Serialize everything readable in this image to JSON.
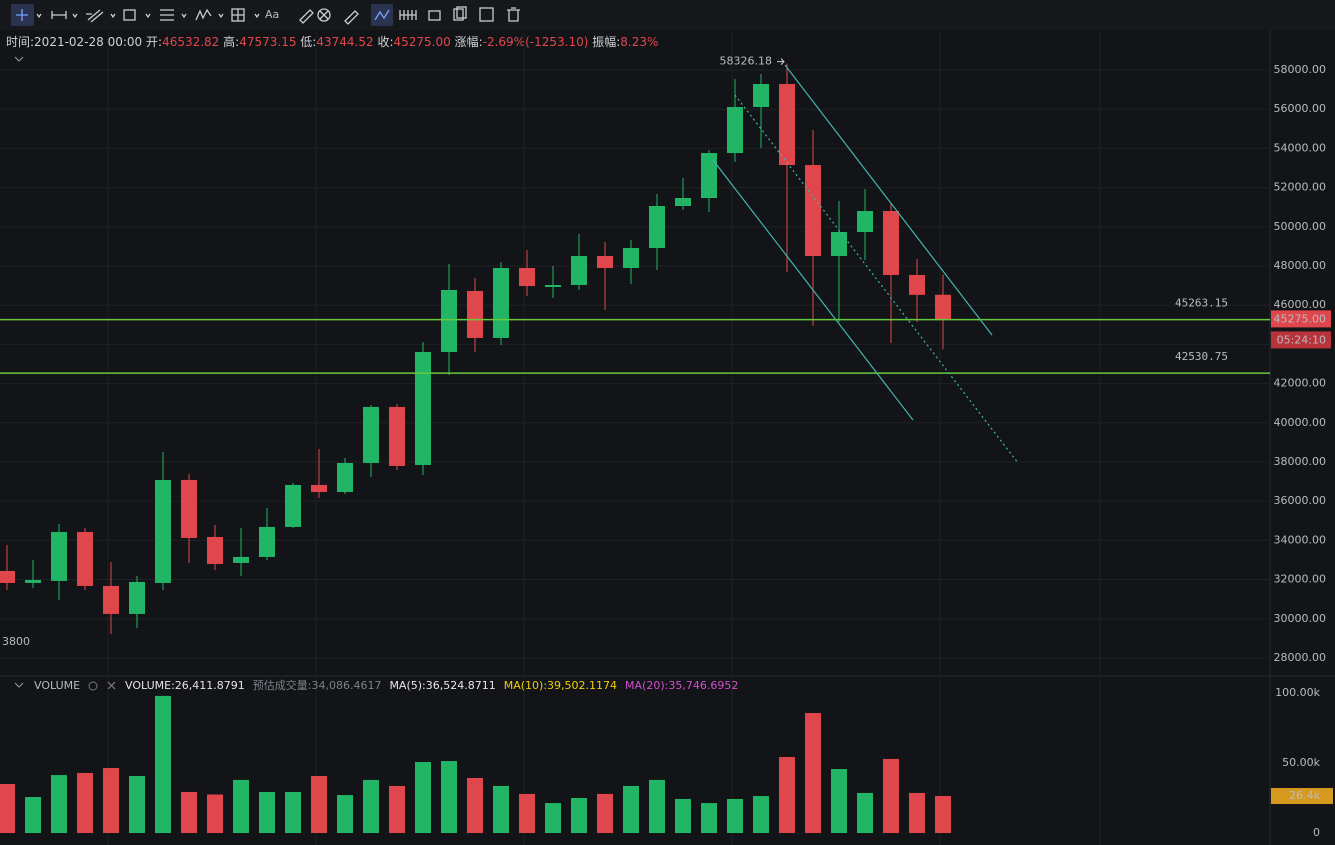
{
  "toolbar": {
    "text_tool": "Aa"
  },
  "header": {
    "time_label": "时间:",
    "time": "2021-02-28 00:00",
    "open_label": "开:",
    "open": "46532.82",
    "high_label": "高:",
    "high": "47573.15",
    "low_label": "低:",
    "low": "43744.52",
    "close_label": "收:",
    "close": "45275.00",
    "change_label": "涨幅:",
    "change": "-2.69%(-1253.10)",
    "amplitude_label": "振幅:",
    "amplitude": "8.23%"
  },
  "chart_data": [
    {
      "type": "candlestick",
      "open": [
        32439,
        31827,
        31929,
        34429,
        31673,
        30245,
        31827,
        37082,
        34173,
        32847,
        33153,
        34684,
        36827,
        36469,
        37949,
        40806,
        37847,
        43612,
        46724,
        44327,
        47898,
        46929,
        47031,
        48510,
        47898,
        48918,
        51061,
        51469,
        53765,
        56112,
        57286,
        53153,
        48510,
        49735,
        50806,
        47541,
        46532.82
      ],
      "high": [
        33765,
        33000,
        34837,
        34633,
        32898,
        32184,
        38510,
        37388,
        34786,
        34633,
        35653,
        36929,
        38663,
        38204,
        40908,
        40959,
        44122,
        48102,
        47388,
        48204,
        48816,
        48000,
        49633,
        49224,
        49327,
        51673,
        52490,
        53918,
        57541,
        57796,
        58326.18,
        54939,
        51316,
        51929,
        51163,
        48357,
        47573.15
      ],
      "low": [
        31469,
        31571,
        30959,
        31469,
        29224,
        29531,
        31469,
        32847,
        32490,
        32184,
        33000,
        34633,
        36163,
        36367,
        37235,
        37592,
        37337,
        42439,
        43612,
        43969,
        46469,
        46367,
        46776,
        45755,
        47082,
        47796,
        50857,
        50755,
        53306,
        54020,
        47694,
        44939,
        45143,
        48306,
        44071,
        45143,
        43744.52
      ],
      "close": [
        31827,
        31980,
        34429,
        31673,
        30245,
        31878,
        37082,
        34122,
        32796,
        33153,
        34684,
        36827,
        36469,
        37949,
        40806,
        37796,
        43612,
        46776,
        44327,
        47898,
        46980,
        47031,
        48510,
        47898,
        48918,
        51061,
        51469,
        53765,
        56112,
        57286,
        53153,
        48510,
        49735,
        50806,
        47541,
        46528.1,
        45275
      ],
      "up_color": "#22b566",
      "down_color": "#e0474c",
      "ylim": [
        27130,
        59940
      ],
      "yticks": [
        {
          "value": 28000,
          "label": "28000.00"
        },
        {
          "value": 30000,
          "label": "30000.00"
        },
        {
          "value": 32000,
          "label": "32000.00"
        },
        {
          "value": 34000,
          "label": "34000.00"
        },
        {
          "value": 36000,
          "label": "36000.00"
        },
        {
          "value": 38000,
          "label": "38000.00"
        },
        {
          "value": 40000,
          "label": "40000.00"
        },
        {
          "value": 42000,
          "label": "42000.00"
        },
        {
          "value": 44000,
          "label": "44000.00"
        },
        {
          "value": 46000,
          "label": "46000.00"
        },
        {
          "value": 48000,
          "label": "48000.00"
        },
        {
          "value": 50000,
          "label": "50000.00"
        },
        {
          "value": 52000,
          "label": "52000.00"
        },
        {
          "value": 54000,
          "label": "54000.00"
        },
        {
          "value": 56000,
          "label": "56000.00"
        },
        {
          "value": 58000,
          "label": "58000.00"
        }
      ],
      "grid": true,
      "hlines": [
        45263.15,
        42530.75
      ],
      "hline_color": "#67c93b",
      "last_price": {
        "value": 45275,
        "label": "45275.00"
      },
      "countdown": "05:24:10",
      "clipped_label": "3800"
    },
    {
      "type": "bar",
      "title": "VOLUME",
      "current": "VOLUME:26,411.8791",
      "estimate": "预估成交量:34,086.4617",
      "ma": [
        {
          "name": "MA(5):36,524.8711",
          "color": "#e6e6e6"
        },
        {
          "name": "MA(10):39,502.1174",
          "color": "#f0d000"
        },
        {
          "name": "MA(20):35,746.6952",
          "color": "#d54fd0"
        }
      ],
      "values": [
        35000,
        25700,
        41400,
        42900,
        46400,
        40700,
        97900,
        29300,
        27500,
        37900,
        29300,
        29300,
        40700,
        27100,
        37900,
        33600,
        50700,
        51400,
        39300,
        33600,
        27900,
        21400,
        25000,
        27900,
        33600,
        37900,
        24300,
        21400,
        24300,
        26400,
        54300,
        85700,
        45700,
        28600,
        52900,
        28600,
        26411.8791
      ],
      "last_label": {
        "value": 26411.8791,
        "label": "26.4k"
      },
      "ylim": [
        0,
        100000
      ],
      "yticks": [
        0,
        {
          "value": 50000,
          "label": "50.00k"
        },
        {
          "value": 100000,
          "label": "100.00k"
        }
      ]
    }
  ]
}
